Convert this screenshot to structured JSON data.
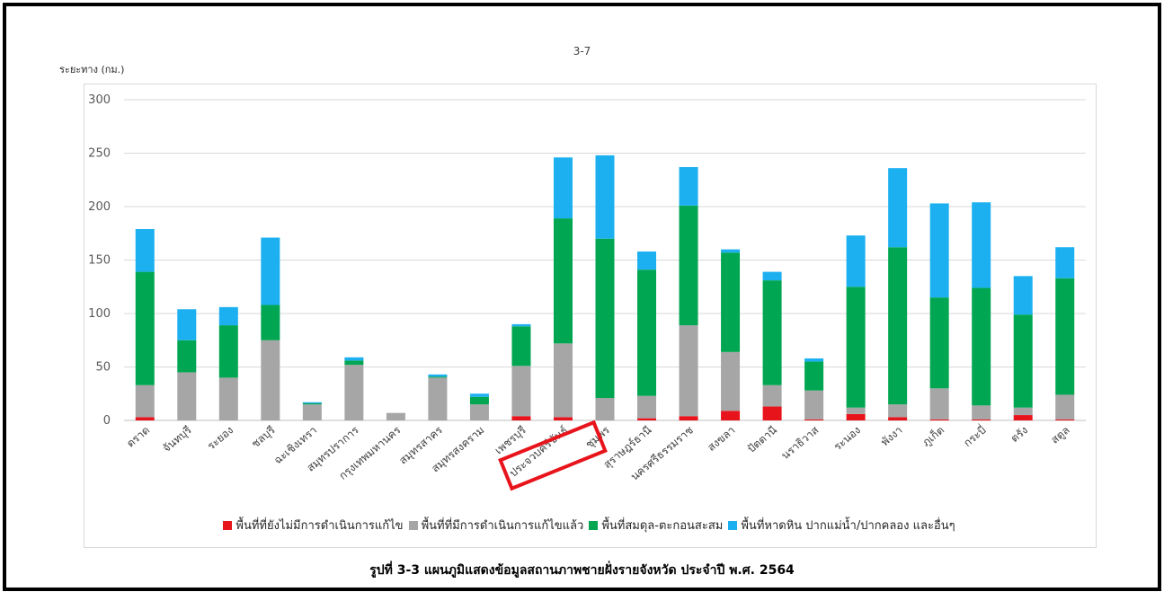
{
  "page_number": "3-7",
  "caption": "รูปที่ 3-3 แผนภูมิแสดงข้อมูลสถานภาพชายฝั่งรายจังหวัด ประจำปี พ.ศ. 2564",
  "chart_data": {
    "type": "bar",
    "stacked": true,
    "ylabel": "ระยะทาง (กม.)",
    "ylim": [
      0,
      300
    ],
    "yticks": [
      0,
      50,
      100,
      150,
      200,
      250,
      300
    ],
    "grid": true,
    "legend_position": "bottom",
    "categories": [
      "ตราด",
      "จันทบุรี",
      "ระยอง",
      "ชลบุรี",
      "ฉะเชิงเทรา",
      "สมุทรปราการ",
      "กรุงเทพมหานคร",
      "สมุทรสาคร",
      "สมุทรสงคราม",
      "เพชรบุรี",
      "ประจวบคีรีขันธ์",
      "ชุมพร",
      "สุราษฎร์ธานี",
      "นครศรีธรรมราช",
      "สงขลา",
      "ปัตตานี",
      "นราธิวาส",
      "ระนอง",
      "พังงา",
      "ภูเก็ต",
      "กระบี่",
      "ตรัง",
      "สตูล"
    ],
    "series": [
      {
        "name": "พื้นที่ที่ยังไม่มีการดำเนินการแก้ไข",
        "color": "#e8141c",
        "values": [
          3,
          0,
          0,
          0,
          0,
          0,
          0,
          0,
          0,
          4,
          3,
          0,
          2,
          4,
          9,
          13,
          1,
          6,
          3,
          1,
          1,
          5,
          1
        ]
      },
      {
        "name": "พื้นที่ที่มีการดำเนินการแก้ไขแล้ว",
        "color": "#a6a6a6",
        "values": [
          30,
          45,
          40,
          75,
          15,
          52,
          7,
          40,
          15,
          47,
          69,
          21,
          21,
          85,
          55,
          20,
          27,
          6,
          12,
          29,
          13,
          7,
          23
        ]
      },
      {
        "name": "พื้นที่สมดุล-ตะกอนสะสม",
        "color": "#00a651",
        "values": [
          106,
          30,
          49,
          33,
          1,
          4,
          0,
          1,
          7,
          37,
          117,
          149,
          118,
          112,
          93,
          98,
          27,
          113,
          147,
          85,
          110,
          87,
          109
        ]
      },
      {
        "name": "พื้นที่หาดหิน ปากแม่น้ำ/ปากคลอง และอื่นๆ",
        "color": "#1cb0f0",
        "values": [
          40,
          29,
          17,
          63,
          1,
          3,
          0,
          2,
          3,
          2,
          57,
          78,
          17,
          36,
          3,
          8,
          3,
          48,
          74,
          88,
          80,
          36,
          29
        ]
      }
    ]
  }
}
